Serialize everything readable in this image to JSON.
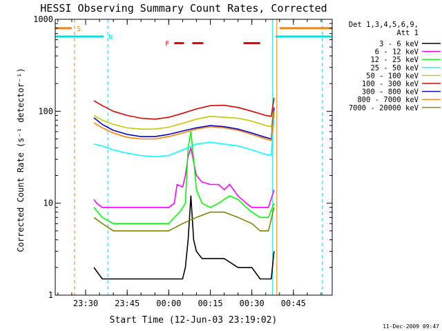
{
  "chart_data": {
    "type": "line",
    "title": "HESSI Observing Summary Count Rates, Corrected",
    "xlabel": "Start Time (12-Jun-03 23:19:02)",
    "ylabel": "Corrected Count Rate (s⁻¹ detector⁻¹)",
    "y_scale": "log",
    "ylim": [
      1,
      1000
    ],
    "xlim": [
      "23:19:02",
      "00:59:00"
    ],
    "y_ticks": [
      "1",
      "10",
      "100",
      "1000"
    ],
    "x_ticks": [
      {
        "label": "23:30",
        "t": "23:30"
      },
      {
        "label": "23:45",
        "t": "23:45"
      },
      {
        "label": "00:00",
        "t": "00:00"
      },
      {
        "label": "00:15",
        "t": "00:15"
      },
      {
        "label": "00:30",
        "t": "00:30"
      },
      {
        "label": "00:45",
        "t": "00:45"
      }
    ],
    "legend_title": [
      "Det 1,3,4,5,6,9,",
      "Att 1"
    ],
    "legend_position": "right, outside plot",
    "timestamp": "11-Dec-2009 09:47",
    "flag_bars": [
      {
        "label": "S",
        "color": "#ff8000",
        "y": 800,
        "segments": [
          [
            "23:19:02",
            "23:25:00"
          ],
          [
            "00:40:00",
            "00:59:00"
          ]
        ],
        "label_t": "23:27:30"
      },
      {
        "label": "N",
        "color": "#00e0e0",
        "y": 650,
        "segments": [
          [
            "23:19:02",
            "23:36:30"
          ],
          [
            "00:38:30",
            "00:59:00"
          ]
        ],
        "label_t": "23:39:00"
      },
      {
        "label": "F",
        "color": "#e00000",
        "y": 550,
        "segments": [
          [
            "00:02:00",
            "00:05:30"
          ],
          [
            "00:08:30",
            "00:12:30"
          ],
          [
            "00:27:00",
            "00:33:00"
          ]
        ],
        "label_t": "23:59:30"
      }
    ],
    "vlines": [
      {
        "t": "23:26:00",
        "color": "#ff8000",
        "dash": true
      },
      {
        "t": "23:38:00",
        "color": "#00e0e0",
        "dash": true
      },
      {
        "t": "00:37:30",
        "color": "#00e0e0",
        "dash": false
      },
      {
        "t": "00:39:00",
        "color": "#ff8000",
        "dash": false
      },
      {
        "t": "00:55:30",
        "color": "#ff8000",
        "dash": true
      },
      {
        "t": "00:55:30",
        "color": "#00e0e0",
        "dash": true
      }
    ],
    "series": [
      {
        "name": "3 - 6 keV",
        "color": "#000000",
        "x": [
          "23:33",
          "23:36",
          "23:40",
          "23:45",
          "23:50",
          "23:55",
          "00:00",
          "00:03",
          "00:05",
          "00:06",
          "00:07",
          "00:08",
          "00:09",
          "00:10",
          "00:12",
          "00:15",
          "00:20",
          "00:25",
          "00:30",
          "00:33",
          "00:36",
          "00:37",
          "00:38"
        ],
        "y": [
          2,
          1.5,
          1.5,
          1.5,
          1.5,
          1.5,
          1.5,
          1.5,
          1.5,
          2,
          4,
          12,
          4,
          3,
          2.5,
          2.5,
          2.5,
          2,
          2,
          1.5,
          1.5,
          1.5,
          3
        ]
      },
      {
        "name": "6 - 12 keV",
        "color": "#ff00ff",
        "x": [
          "23:33",
          "23:34",
          "23:36",
          "23:40",
          "23:45",
          "23:50",
          "23:55",
          "23:58",
          "00:00",
          "00:02",
          "00:03",
          "00:05",
          "00:06",
          "00:07",
          "00:08",
          "00:09",
          "00:10",
          "00:12",
          "00:15",
          "00:18",
          "00:20",
          "00:22",
          "00:25",
          "00:28",
          "00:30",
          "00:33",
          "00:36",
          "00:38"
        ],
        "y": [
          11,
          10,
          9,
          9,
          9,
          9,
          9,
          9,
          9,
          10,
          16,
          15,
          20,
          32,
          40,
          28,
          20,
          17,
          16,
          16,
          14,
          16,
          12,
          10,
          9,
          9,
          9,
          14
        ]
      },
      {
        "name": "12 - 25 keV",
        "color": "#00ff00",
        "x": [
          "23:33",
          "23:36",
          "23:40",
          "23:45",
          "23:50",
          "23:55",
          "00:00",
          "00:02",
          "00:04",
          "00:06",
          "00:07",
          "00:08",
          "00:09",
          "00:10",
          "00:12",
          "00:15",
          "00:18",
          "00:20",
          "00:22",
          "00:25",
          "00:28",
          "00:30",
          "00:33",
          "00:36",
          "00:38"
        ],
        "y": [
          9,
          7,
          6,
          6,
          6,
          6,
          6,
          7,
          8,
          10,
          40,
          60,
          30,
          14,
          10,
          9,
          10,
          11,
          12,
          11,
          9,
          8,
          7,
          7,
          10
        ]
      },
      {
        "name": "25 - 50 keV",
        "color": "#00ffff",
        "x": [
          "23:33",
          "23:36",
          "23:40",
          "23:45",
          "23:50",
          "23:55",
          "00:00",
          "00:05",
          "00:10",
          "00:15",
          "00:20",
          "00:25",
          "00:30",
          "00:35",
          "00:37",
          "00:38"
        ],
        "y": [
          44,
          42,
          38,
          35,
          33,
          32,
          33,
          38,
          44,
          46,
          44,
          42,
          38,
          34,
          33,
          90
        ]
      },
      {
        "name": "50 - 100 keV",
        "color": "#c8c800",
        "x": [
          "23:33",
          "23:36",
          "23:40",
          "23:45",
          "23:50",
          "23:55",
          "00:00",
          "00:05",
          "00:10",
          "00:15",
          "00:20",
          "00:25",
          "00:30",
          "00:35",
          "00:37",
          "00:38"
        ],
        "y": [
          90,
          80,
          72,
          66,
          64,
          64,
          67,
          74,
          82,
          88,
          86,
          84,
          78,
          70,
          68,
          110
        ]
      },
      {
        "name": "100 - 300 keV",
        "color": "#e00000",
        "x": [
          "23:33",
          "23:36",
          "23:40",
          "23:45",
          "23:50",
          "23:55",
          "00:00",
          "00:05",
          "00:10",
          "00:15",
          "00:20",
          "00:25",
          "00:30",
          "00:35",
          "00:37",
          "00:38"
        ],
        "y": [
          130,
          115,
          100,
          90,
          84,
          82,
          86,
          95,
          106,
          115,
          116,
          110,
          100,
          90,
          88,
          140
        ]
      },
      {
        "name": "300 - 800 keV",
        "color": "#0000cc",
        "x": [
          "23:33",
          "23:36",
          "23:40",
          "23:45",
          "23:50",
          "23:55",
          "00:00",
          "00:05",
          "00:10",
          "00:15",
          "00:20",
          "00:25",
          "00:30",
          "00:35",
          "00:37",
          "00:38"
        ],
        "y": [
          85,
          72,
          62,
          56,
          53,
          53,
          56,
          61,
          66,
          70,
          68,
          64,
          58,
          52,
          50,
          110
        ]
      },
      {
        "name": "800 - 7000 keV",
        "color": "#ff8000",
        "x": [
          "23:33",
          "23:36",
          "23:40",
          "23:45",
          "23:50",
          "23:55",
          "00:00",
          "00:05",
          "00:10",
          "00:15",
          "00:20",
          "00:25",
          "00:30",
          "00:35",
          "00:37",
          "00:38"
        ],
        "y": [
          75,
          66,
          58,
          52,
          50,
          50,
          53,
          58,
          64,
          68,
          66,
          62,
          56,
          50,
          48,
          100
        ]
      },
      {
        "name": "7000 - 20000 keV",
        "color": "#808000",
        "x": [
          "23:33",
          "23:36",
          "23:40",
          "23:45",
          "23:50",
          "23:55",
          "00:00",
          "00:05",
          "00:10",
          "00:15",
          "00:20",
          "00:25",
          "00:30",
          "00:33",
          "00:36",
          "00:38"
        ],
        "y": [
          7,
          6,
          5,
          5,
          5,
          5,
          5,
          6,
          7,
          8,
          8,
          7,
          6,
          5,
          5,
          9
        ]
      }
    ]
  }
}
